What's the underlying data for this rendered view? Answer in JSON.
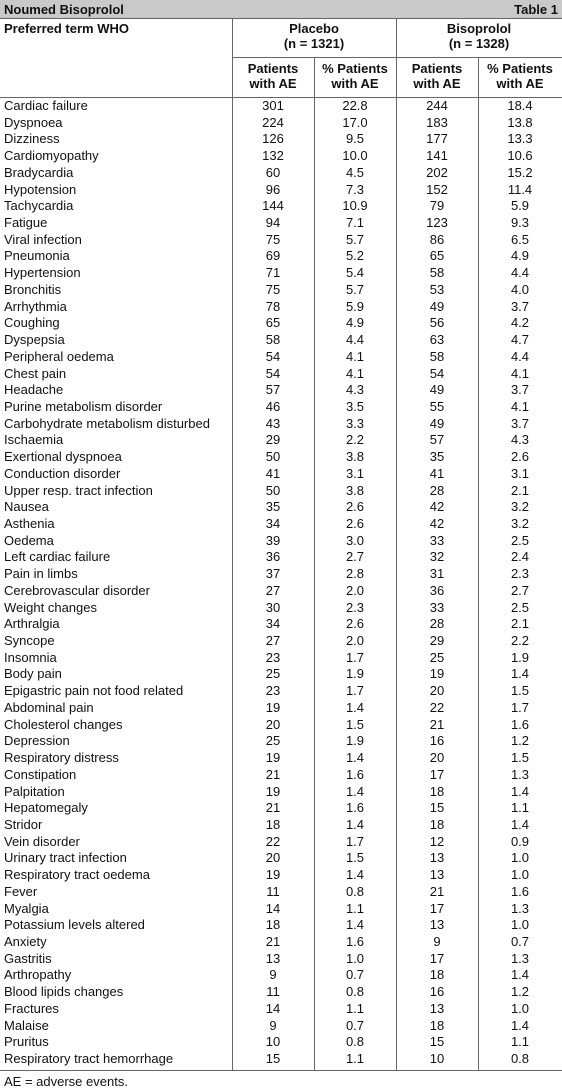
{
  "header": {
    "title": "Noumed Bisoprolol",
    "label": "Table 1"
  },
  "table": {
    "term_header": "Preferred term WHO",
    "groups": [
      {
        "name": "Placebo",
        "n": "(n = 1321)"
      },
      {
        "name": "Bisoprolol",
        "n": "(n = 1328)"
      }
    ],
    "subcolumns": [
      "Patients\nwith AE",
      "% Patients\nwith AE",
      "Patients\nwith AE",
      "% Patients\nwith AE"
    ],
    "rows": [
      [
        "Cardiac failure",
        "301",
        "22.8",
        "244",
        "18.4"
      ],
      [
        "Dyspnoea",
        "224",
        "17.0",
        "183",
        "13.8"
      ],
      [
        "Dizziness",
        "126",
        "9.5",
        "177",
        "13.3"
      ],
      [
        "Cardiomyopathy",
        "132",
        "10.0",
        "141",
        "10.6"
      ],
      [
        "Bradycardia",
        "60",
        "4.5",
        "202",
        "15.2"
      ],
      [
        "Hypotension",
        "96",
        "7.3",
        "152",
        "11.4"
      ],
      [
        "Tachycardia",
        "144",
        "10.9",
        "79",
        "5.9"
      ],
      [
        "Fatigue",
        "94",
        "7.1",
        "123",
        "9.3"
      ],
      [
        "Viral infection",
        "75",
        "5.7",
        "86",
        "6.5"
      ],
      [
        "Pneumonia",
        "69",
        "5.2",
        "65",
        "4.9"
      ],
      [
        "Hypertension",
        "71",
        "5.4",
        "58",
        "4.4"
      ],
      [
        "Bronchitis",
        "75",
        "5.7",
        "53",
        "4.0"
      ],
      [
        "Arrhythmia",
        "78",
        "5.9",
        "49",
        "3.7"
      ],
      [
        "Coughing",
        "65",
        "4.9",
        "56",
        "4.2"
      ],
      [
        "Dyspepsia",
        "58",
        "4.4",
        "63",
        "4.7"
      ],
      [
        "Peripheral oedema",
        "54",
        "4.1",
        "58",
        "4.4"
      ],
      [
        "Chest pain",
        "54",
        "4.1",
        "54",
        "4.1"
      ],
      [
        "Headache",
        "57",
        "4.3",
        "49",
        "3.7"
      ],
      [
        "Purine metabolism disorder",
        "46",
        "3.5",
        "55",
        "4.1"
      ],
      [
        "Carbohydrate metabolism disturbed",
        "43",
        "3.3",
        "49",
        "3.7"
      ],
      [
        "Ischaemia",
        "29",
        "2.2",
        "57",
        "4.3"
      ],
      [
        "Exertional dyspnoea",
        "50",
        "3.8",
        "35",
        "2.6"
      ],
      [
        "Conduction disorder",
        "41",
        "3.1",
        "41",
        "3.1"
      ],
      [
        "Upper resp. tract infection",
        "50",
        "3.8",
        "28",
        "2.1"
      ],
      [
        "Nausea",
        "35",
        "2.6",
        "42",
        "3.2"
      ],
      [
        "Asthenia",
        "34",
        "2.6",
        "42",
        "3.2"
      ],
      [
        "Oedema",
        "39",
        "3.0",
        "33",
        "2.5"
      ],
      [
        "Left cardiac failure",
        "36",
        "2.7",
        "32",
        "2.4"
      ],
      [
        "Pain in limbs",
        "37",
        "2.8",
        "31",
        "2.3"
      ],
      [
        "Cerebrovascular disorder",
        "27",
        "2.0",
        "36",
        "2.7"
      ],
      [
        "Weight changes",
        "30",
        "2.3",
        "33",
        "2.5"
      ],
      [
        "Arthralgia",
        "34",
        "2.6",
        "28",
        "2.1"
      ],
      [
        "Syncope",
        "27",
        "2.0",
        "29",
        "2.2"
      ],
      [
        "Insomnia",
        "23",
        "1.7",
        "25",
        "1.9"
      ],
      [
        "Body pain",
        "25",
        "1.9",
        "19",
        "1.4"
      ],
      [
        "Epigastric pain not food related",
        "23",
        "1.7",
        "20",
        "1.5"
      ],
      [
        "Abdominal pain",
        "19",
        "1.4",
        "22",
        "1.7"
      ],
      [
        "Cholesterol changes",
        "20",
        "1.5",
        "21",
        "1.6"
      ],
      [
        "Depression",
        "25",
        "1.9",
        "16",
        "1.2"
      ],
      [
        "Respiratory distress",
        "19",
        "1.4",
        "20",
        "1.5"
      ],
      [
        "Constipation",
        "21",
        "1.6",
        "17",
        "1.3"
      ],
      [
        "Palpitation",
        "19",
        "1.4",
        "18",
        "1.4"
      ],
      [
        "Hepatomegaly",
        "21",
        "1.6",
        "15",
        "1.1"
      ],
      [
        "Stridor",
        "18",
        "1.4",
        "18",
        "1.4"
      ],
      [
        "Vein disorder",
        "22",
        "1.7",
        "12",
        "0.9"
      ],
      [
        "Urinary tract infection",
        "20",
        "1.5",
        "13",
        "1.0"
      ],
      [
        "Respiratory tract oedema",
        "19",
        "1.4",
        "13",
        "1.0"
      ],
      [
        "Fever",
        "11",
        "0.8",
        "21",
        "1.6"
      ],
      [
        "Myalgia",
        "14",
        "1.1",
        "17",
        "1.3"
      ],
      [
        "Potassium levels altered",
        "18",
        "1.4",
        "13",
        "1.0"
      ],
      [
        "Anxiety",
        "21",
        "1.6",
        "9",
        "0.7"
      ],
      [
        "Gastritis",
        "13",
        "1.0",
        "17",
        "1.3"
      ],
      [
        "Arthropathy",
        "9",
        "0.7",
        "18",
        "1.4"
      ],
      [
        "Blood lipids changes",
        "11",
        "0.8",
        "16",
        "1.2"
      ],
      [
        "Fractures",
        "14",
        "1.1",
        "13",
        "1.0"
      ],
      [
        "Malaise",
        "9",
        "0.7",
        "18",
        "1.4"
      ],
      [
        "Pruritus",
        "10",
        "0.8",
        "15",
        "1.1"
      ],
      [
        "Respiratory tract hemorrhage",
        "15",
        "1.1",
        "10",
        "0.8"
      ]
    ]
  },
  "footnote": "AE = adverse events."
}
